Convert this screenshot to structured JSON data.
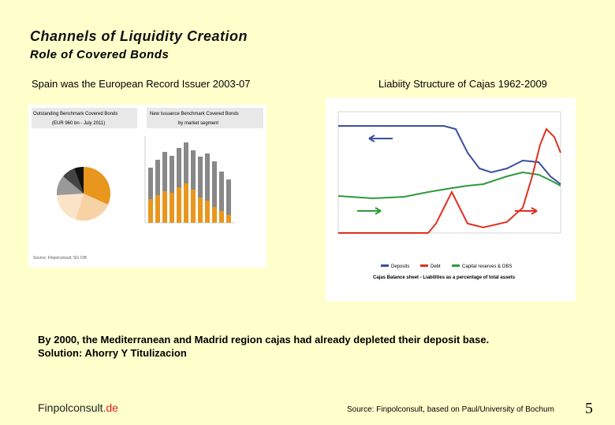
{
  "header": {
    "title": "Channels of Liquidity Creation",
    "subtitle": "Role of Covered Bonds"
  },
  "left_panel": {
    "heading": "Spain was the European Record Issuer 2003-07",
    "figure": {
      "title_left": "Outstanding Benchmark Covered Bonds",
      "subtitle_left": "(EUR 960 bn - July 2011)",
      "title_right": "New Issuance Benchmark Covered Bonds",
      "subtitle_right": "by market segment",
      "source": "Source: Finpolconsult, SG CIB"
    }
  },
  "right_panel": {
    "heading": "Liabiity Structure of Cajas 1962-2009",
    "figure": {
      "legend": [
        "Deposits",
        "Debt",
        "Capital reserves & OBS"
      ],
      "caption": "Cajas Balance sheet - Liabilities as a percentage of total assets"
    }
  },
  "body": [
    "By 2000, the Mediterranean and Madrid region cajas had already depleted their deposit base.",
    "Solution: Ahorry Y Titulizacion"
  ],
  "footer": {
    "brand": "Finpolconsult",
    "brand_suffix": ".de",
    "source": "Source: Finpolconsult, based on Paul/University of Bochum",
    "page": "5"
  }
}
